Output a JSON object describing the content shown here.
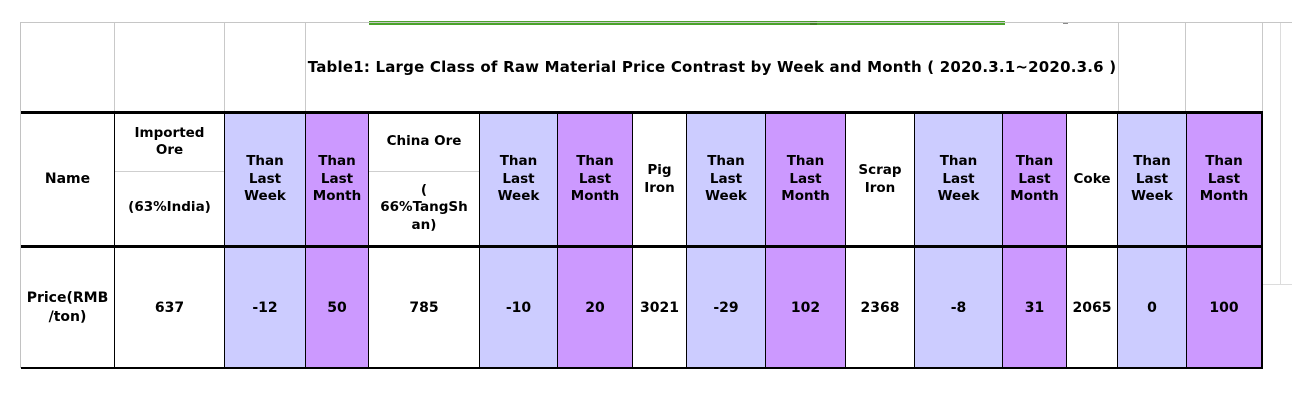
{
  "title": {
    "text": "Table1:  Large Class of Raw Material Price Contrast by Week and Month ( 2020.3.1~2020.3.6 )"
  },
  "table": {
    "name_header": "Name",
    "row_label": "Price(RMB\n/ton)",
    "than_week_label": "Than\nLast\nWeek",
    "than_month_label": "Than\nLast\nMonth",
    "groups": [
      {
        "name": "Imported\nOre",
        "sub": "(63%India)",
        "price": "637",
        "than_week": "-12",
        "than_month": "50"
      },
      {
        "name": "China Ore",
        "sub": "(\n66%TangSh\nan)",
        "price": "785",
        "than_week": "-10",
        "than_month": "20"
      },
      {
        "name": "Pig\nIron",
        "price": "3021",
        "than_week": "-29",
        "than_month": "102"
      },
      {
        "name": "Scrap\nIron",
        "price": "2368",
        "than_week": "-8",
        "than_month": "31"
      },
      {
        "name": "Coke",
        "price": "2065",
        "than_week": "0",
        "than_month": "100"
      }
    ]
  },
  "colors": {
    "than_week_bg": "#CCCCFF",
    "than_month_bg": "#CC99FF",
    "accent_green_line": "#4CA32D",
    "grid_gray": "#C6C6C6",
    "border_black": "#000000"
  }
}
